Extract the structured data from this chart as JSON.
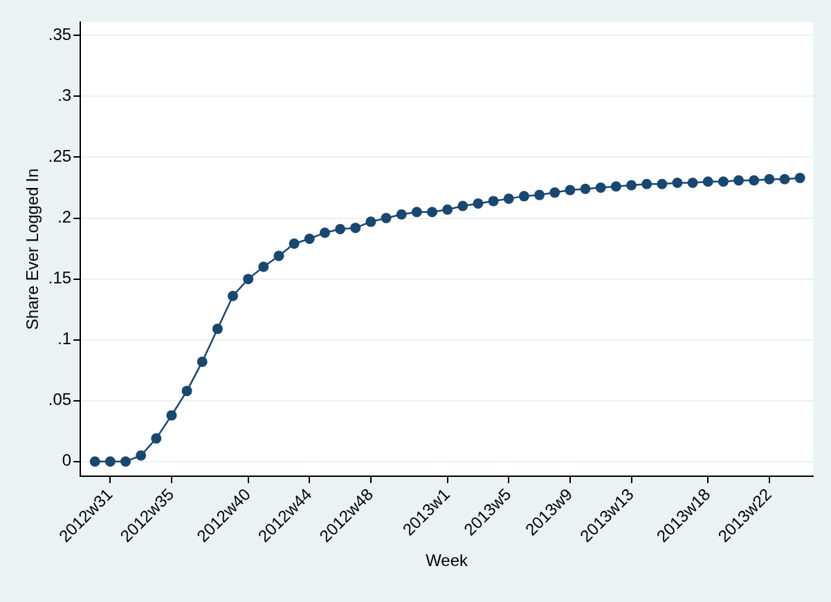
{
  "chart_data": {
    "type": "line",
    "xlabel": "Week",
    "ylabel": "Share Ever Logged In",
    "categories": [
      null,
      "2012w31",
      null,
      null,
      null,
      "2012w35",
      null,
      null,
      null,
      null,
      "2012w40",
      null,
      null,
      null,
      "2012w44",
      null,
      null,
      null,
      "2012w48",
      null,
      null,
      null,
      null,
      "2013w1",
      null,
      null,
      null,
      "2013w5",
      null,
      null,
      null,
      "2013w9",
      null,
      null,
      null,
      "2013w13",
      null,
      null,
      null,
      null,
      "2013w18",
      null,
      null,
      null,
      "2013w22",
      null,
      null
    ],
    "series": [
      {
        "color": "#1a476f",
        "values": [
          0,
          0,
          0,
          0.005,
          0.019,
          0.038,
          0.058,
          0.082,
          0.109,
          0.136,
          0.15,
          0.16,
          0.169,
          0.179,
          0.183,
          0.188,
          0.191,
          0.192,
          0.197,
          0.2,
          0.203,
          0.205,
          0.205,
          0.207,
          0.21,
          0.212,
          0.214,
          0.216,
          0.218,
          0.219,
          0.221,
          0.223,
          0.224,
          0.225,
          0.226,
          0.227,
          0.228,
          0.228,
          0.229,
          0.229,
          0.23,
          0.23,
          0.231,
          0.231,
          0.232,
          0.232,
          0.233
        ]
      }
    ],
    "ylim": [
      -0.012,
      0.361
    ],
    "yticks": [
      {
        "value": 0,
        "label": "0"
      },
      {
        "value": 0.05,
        "label": ".05"
      },
      {
        "value": 0.1,
        "label": ".1"
      },
      {
        "value": 0.15,
        "label": ".15"
      },
      {
        "value": 0.2,
        "label": ".2"
      },
      {
        "value": 0.25,
        "label": ".25"
      },
      {
        "value": 0.3,
        "label": ".3"
      },
      {
        "value": 0.35,
        "label": ".35"
      }
    ],
    "grid": "y",
    "marker": "circle",
    "line_style": "solid",
    "legend": false
  }
}
